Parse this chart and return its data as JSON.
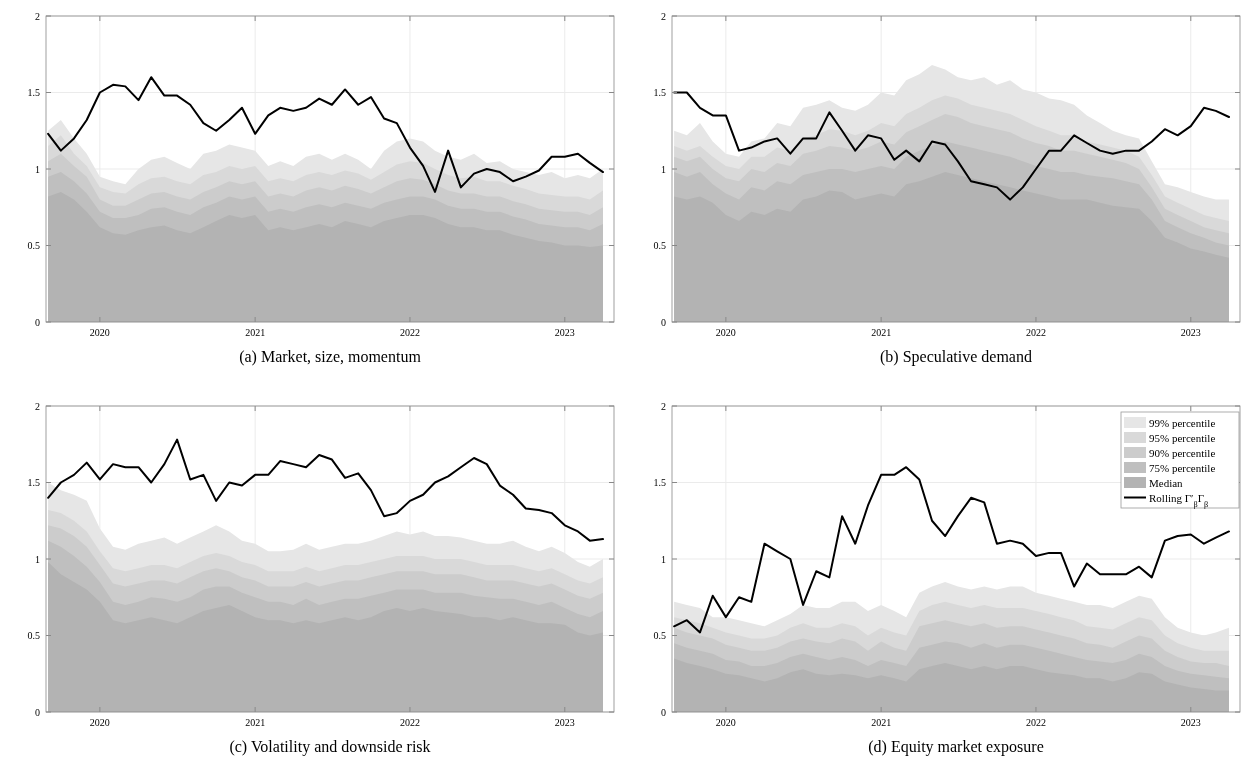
{
  "chart_data": [
    {
      "type": "area",
      "title": "(a) Market, size, momentum",
      "xlim": [
        "2019-08-27",
        "2023-04-27"
      ],
      "xticks": [
        {
          "value": "2020",
          "label": "2020"
        },
        {
          "value": "2021",
          "label": "2021"
        },
        {
          "value": "2022",
          "label": "2022"
        },
        {
          "value": "2023",
          "label": "2023"
        }
      ],
      "ylim": [
        0,
        2
      ],
      "yticks": [
        0,
        0.5,
        1,
        1.5,
        2
      ],
      "grid": true,
      "legend": false,
      "x": [
        "2019-09",
        "2019-10",
        "2019-11",
        "2019-12",
        "2020-01",
        "2020-02",
        "2020-03",
        "2020-04",
        "2020-05",
        "2020-06",
        "2020-07",
        "2020-08",
        "2020-09",
        "2020-10",
        "2020-11",
        "2020-12",
        "2021-01",
        "2021-02",
        "2021-03",
        "2021-04",
        "2021-05",
        "2021-06",
        "2021-07",
        "2021-08",
        "2021-09",
        "2021-10",
        "2021-11",
        "2021-12",
        "2022-01",
        "2022-02",
        "2022-03",
        "2022-04",
        "2022-05",
        "2022-06",
        "2022-07",
        "2022-08",
        "2022-09",
        "2022-10",
        "2022-11",
        "2022-12",
        "2023-01",
        "2023-02",
        "2023-03",
        "2023-04"
      ],
      "series": [
        {
          "color": "#e6e6e6",
          "values": [
            1.25,
            1.32,
            1.2,
            1.1,
            0.95,
            0.92,
            0.9,
            1.0,
            1.06,
            1.08,
            1.04,
            1.0,
            1.1,
            1.12,
            1.16,
            1.14,
            1.12,
            1.02,
            1.05,
            1.02,
            1.08,
            1.1,
            1.06,
            1.1,
            1.06,
            1.0,
            1.12,
            1.18,
            1.2,
            1.18,
            1.12,
            1.08,
            1.06,
            1.1,
            1.04,
            1.05,
            1.0,
            0.98,
            0.96,
            0.98,
            0.94,
            0.96,
            0.94,
            1.0
          ]
        },
        {
          "color": "#d9d9d9",
          "values": [
            1.15,
            1.22,
            1.1,
            1.02,
            0.88,
            0.85,
            0.84,
            0.9,
            0.94,
            0.95,
            0.92,
            0.9,
            0.96,
            0.98,
            1.02,
            1.0,
            1.02,
            0.92,
            0.94,
            0.92,
            0.96,
            0.98,
            0.96,
            0.99,
            0.97,
            0.93,
            0.98,
            1.03,
            1.05,
            1.04,
            1.0,
            0.96,
            0.94,
            0.95,
            0.92,
            0.92,
            0.89,
            0.87,
            0.84,
            0.83,
            0.82,
            0.82,
            0.8,
            0.86
          ]
        },
        {
          "color": "#cccccc",
          "values": [
            1.05,
            1.1,
            1.02,
            0.95,
            0.8,
            0.76,
            0.76,
            0.8,
            0.84,
            0.85,
            0.82,
            0.8,
            0.85,
            0.88,
            0.92,
            0.9,
            0.92,
            0.82,
            0.84,
            0.82,
            0.86,
            0.88,
            0.86,
            0.89,
            0.87,
            0.84,
            0.88,
            0.92,
            0.94,
            0.93,
            0.9,
            0.86,
            0.84,
            0.84,
            0.82,
            0.82,
            0.79,
            0.77,
            0.74,
            0.73,
            0.72,
            0.72,
            0.7,
            0.75
          ]
        },
        {
          "color": "#bfbfbf",
          "values": [
            0.95,
            0.98,
            0.92,
            0.84,
            0.72,
            0.68,
            0.68,
            0.7,
            0.74,
            0.75,
            0.72,
            0.7,
            0.75,
            0.78,
            0.82,
            0.8,
            0.82,
            0.72,
            0.74,
            0.72,
            0.75,
            0.77,
            0.75,
            0.78,
            0.76,
            0.74,
            0.78,
            0.8,
            0.82,
            0.82,
            0.8,
            0.76,
            0.74,
            0.74,
            0.72,
            0.72,
            0.69,
            0.67,
            0.64,
            0.63,
            0.62,
            0.62,
            0.6,
            0.64
          ]
        },
        {
          "color": "#b3b3b3",
          "values": [
            0.82,
            0.85,
            0.8,
            0.72,
            0.62,
            0.58,
            0.57,
            0.6,
            0.62,
            0.63,
            0.6,
            0.58,
            0.62,
            0.66,
            0.7,
            0.68,
            0.7,
            0.6,
            0.62,
            0.6,
            0.62,
            0.64,
            0.62,
            0.66,
            0.64,
            0.62,
            0.66,
            0.68,
            0.7,
            0.7,
            0.68,
            0.64,
            0.62,
            0.62,
            0.6,
            0.6,
            0.57,
            0.55,
            0.53,
            0.52,
            0.5,
            0.5,
            0.49,
            0.5
          ]
        },
        {
          "type": "line",
          "color": "#000000",
          "values": [
            1.23,
            1.12,
            1.2,
            1.32,
            1.5,
            1.55,
            1.54,
            1.45,
            1.6,
            1.48,
            1.48,
            1.42,
            1.3,
            1.25,
            1.32,
            1.4,
            1.23,
            1.35,
            1.4,
            1.38,
            1.4,
            1.46,
            1.42,
            1.52,
            1.42,
            1.47,
            1.33,
            1.3,
            1.14,
            1.02,
            0.85,
            1.12,
            0.88,
            0.97,
            1.0,
            0.98,
            0.92,
            0.95,
            0.99,
            1.08,
            1.08,
            1.1,
            1.04,
            0.98
          ]
        }
      ]
    },
    {
      "type": "area",
      "title": "(b) Speculative demand",
      "xlim": [
        "2019-08-27",
        "2023-04-27"
      ],
      "xticks": [
        {
          "value": "2020",
          "label": "2020"
        },
        {
          "value": "2021",
          "label": "2021"
        },
        {
          "value": "2022",
          "label": "2022"
        },
        {
          "value": "2023",
          "label": "2023"
        }
      ],
      "ylim": [
        0,
        2
      ],
      "yticks": [
        0,
        0.5,
        1,
        1.5,
        2
      ],
      "grid": true,
      "legend": false,
      "x": [
        "2019-09",
        "2019-10",
        "2019-11",
        "2019-12",
        "2020-01",
        "2020-02",
        "2020-03",
        "2020-04",
        "2020-05",
        "2020-06",
        "2020-07",
        "2020-08",
        "2020-09",
        "2020-10",
        "2020-11",
        "2020-12",
        "2021-01",
        "2021-02",
        "2021-03",
        "2021-04",
        "2021-05",
        "2021-06",
        "2021-07",
        "2021-08",
        "2021-09",
        "2021-10",
        "2021-11",
        "2021-12",
        "2022-01",
        "2022-02",
        "2022-03",
        "2022-04",
        "2022-05",
        "2022-06",
        "2022-07",
        "2022-08",
        "2022-09",
        "2022-10",
        "2022-11",
        "2022-12",
        "2023-01",
        "2023-02",
        "2023-03",
        "2023-04"
      ],
      "series": [
        {
          "color": "#e6e6e6",
          "values": [
            1.25,
            1.22,
            1.3,
            1.18,
            1.1,
            1.08,
            1.18,
            1.2,
            1.3,
            1.28,
            1.4,
            1.42,
            1.45,
            1.4,
            1.38,
            1.42,
            1.5,
            1.48,
            1.58,
            1.62,
            1.68,
            1.65,
            1.6,
            1.58,
            1.6,
            1.55,
            1.58,
            1.52,
            1.5,
            1.46,
            1.45,
            1.42,
            1.35,
            1.3,
            1.25,
            1.22,
            1.2,
            1.05,
            0.9,
            0.88,
            0.85,
            0.82,
            0.8,
            0.8
          ]
        },
        {
          "color": "#d9d9d9",
          "values": [
            1.15,
            1.12,
            1.15,
            1.08,
            1.02,
            1.0,
            1.08,
            1.08,
            1.14,
            1.12,
            1.2,
            1.22,
            1.26,
            1.25,
            1.22,
            1.25,
            1.3,
            1.28,
            1.36,
            1.4,
            1.45,
            1.48,
            1.46,
            1.42,
            1.4,
            1.38,
            1.36,
            1.32,
            1.28,
            1.25,
            1.22,
            1.22,
            1.18,
            1.16,
            1.14,
            1.12,
            1.08,
            0.96,
            0.82,
            0.78,
            0.74,
            0.7,
            0.68,
            0.66
          ]
        },
        {
          "color": "#cccccc",
          "values": [
            1.08,
            1.05,
            1.08,
            1.0,
            0.94,
            0.92,
            1.0,
            0.98,
            1.04,
            1.02,
            1.1,
            1.12,
            1.15,
            1.14,
            1.12,
            1.14,
            1.18,
            1.16,
            1.24,
            1.28,
            1.32,
            1.36,
            1.34,
            1.3,
            1.28,
            1.26,
            1.24,
            1.2,
            1.17,
            1.15,
            1.12,
            1.12,
            1.1,
            1.08,
            1.06,
            1.04,
            1.0,
            0.88,
            0.74,
            0.7,
            0.66,
            0.62,
            0.6,
            0.58
          ]
        },
        {
          "color": "#bfbfbf",
          "values": [
            0.98,
            0.95,
            0.98,
            0.9,
            0.84,
            0.8,
            0.88,
            0.86,
            0.92,
            0.9,
            0.96,
            0.98,
            1.0,
            1.0,
            0.98,
            1.0,
            1.02,
            1.0,
            1.08,
            1.12,
            1.15,
            1.18,
            1.16,
            1.14,
            1.12,
            1.1,
            1.08,
            1.05,
            1.02,
            1.0,
            0.98,
            0.98,
            0.96,
            0.95,
            0.94,
            0.92,
            0.9,
            0.8,
            0.66,
            0.62,
            0.58,
            0.55,
            0.52,
            0.5
          ]
        },
        {
          "color": "#b3b3b3",
          "values": [
            0.82,
            0.8,
            0.82,
            0.78,
            0.7,
            0.66,
            0.72,
            0.7,
            0.74,
            0.72,
            0.8,
            0.82,
            0.86,
            0.85,
            0.8,
            0.82,
            0.84,
            0.82,
            0.9,
            0.92,
            0.95,
            0.98,
            0.96,
            0.94,
            0.92,
            0.9,
            0.88,
            0.86,
            0.84,
            0.82,
            0.8,
            0.8,
            0.8,
            0.78,
            0.76,
            0.75,
            0.74,
            0.66,
            0.55,
            0.52,
            0.48,
            0.46,
            0.44,
            0.42
          ]
        },
        {
          "type": "line",
          "color": "#000000",
          "values": [
            1.5,
            1.5,
            1.4,
            1.35,
            1.35,
            1.12,
            1.14,
            1.18,
            1.2,
            1.1,
            1.2,
            1.2,
            1.37,
            1.25,
            1.12,
            1.22,
            1.2,
            1.06,
            1.12,
            1.05,
            1.18,
            1.16,
            1.05,
            0.92,
            0.9,
            0.88,
            0.8,
            0.88,
            1.0,
            1.12,
            1.12,
            1.22,
            1.17,
            1.12,
            1.1,
            1.12,
            1.12,
            1.18,
            1.26,
            1.22,
            1.28,
            1.4,
            1.38,
            1.34
          ]
        }
      ]
    },
    {
      "type": "area",
      "title": "(c) Volatility and downside risk",
      "xlim": [
        "2019-08-27",
        "2023-04-27"
      ],
      "xticks": [
        {
          "value": "2020",
          "label": "2020"
        },
        {
          "value": "2021",
          "label": "2021"
        },
        {
          "value": "2022",
          "label": "2022"
        },
        {
          "value": "2023",
          "label": "2023"
        }
      ],
      "ylim": [
        0,
        2
      ],
      "yticks": [
        0,
        0.5,
        1,
        1.5,
        2
      ],
      "grid": true,
      "legend": false,
      "x": [
        "2019-09",
        "2019-10",
        "2019-11",
        "2019-12",
        "2020-01",
        "2020-02",
        "2020-03",
        "2020-04",
        "2020-05",
        "2020-06",
        "2020-07",
        "2020-08",
        "2020-09",
        "2020-10",
        "2020-11",
        "2020-12",
        "2021-01",
        "2021-02",
        "2021-03",
        "2021-04",
        "2021-05",
        "2021-06",
        "2021-07",
        "2021-08",
        "2021-09",
        "2021-10",
        "2021-11",
        "2021-12",
        "2022-01",
        "2022-02",
        "2022-03",
        "2022-04",
        "2022-05",
        "2022-06",
        "2022-07",
        "2022-08",
        "2022-09",
        "2022-10",
        "2022-11",
        "2022-12",
        "2023-01",
        "2023-02",
        "2023-03",
        "2023-04"
      ],
      "series": [
        {
          "color": "#e6e6e6",
          "values": [
            1.5,
            1.45,
            1.42,
            1.38,
            1.2,
            1.08,
            1.06,
            1.1,
            1.12,
            1.14,
            1.1,
            1.14,
            1.18,
            1.22,
            1.18,
            1.12,
            1.1,
            1.05,
            1.05,
            1.06,
            1.1,
            1.06,
            1.08,
            1.1,
            1.1,
            1.12,
            1.15,
            1.18,
            1.16,
            1.18,
            1.15,
            1.15,
            1.14,
            1.12,
            1.1,
            1.1,
            1.12,
            1.08,
            1.05,
            1.08,
            1.04,
            0.98,
            0.95,
            1.0
          ]
        },
        {
          "color": "#d9d9d9",
          "values": [
            1.32,
            1.3,
            1.25,
            1.18,
            1.05,
            0.94,
            0.92,
            0.94,
            0.96,
            0.96,
            0.94,
            0.98,
            1.02,
            1.04,
            1.02,
            0.98,
            0.96,
            0.92,
            0.92,
            0.92,
            0.95,
            0.92,
            0.94,
            0.96,
            0.96,
            0.98,
            1.0,
            1.02,
            1.02,
            1.02,
            1.0,
            1.0,
            1.0,
            0.98,
            0.96,
            0.96,
            0.96,
            0.94,
            0.92,
            0.94,
            0.9,
            0.86,
            0.84,
            0.88
          ]
        },
        {
          "color": "#cccccc",
          "values": [
            1.22,
            1.2,
            1.15,
            1.08,
            0.96,
            0.84,
            0.82,
            0.84,
            0.86,
            0.86,
            0.84,
            0.88,
            0.92,
            0.94,
            0.92,
            0.88,
            0.86,
            0.82,
            0.82,
            0.82,
            0.85,
            0.82,
            0.84,
            0.86,
            0.86,
            0.88,
            0.9,
            0.92,
            0.92,
            0.92,
            0.9,
            0.9,
            0.9,
            0.88,
            0.86,
            0.86,
            0.86,
            0.84,
            0.82,
            0.84,
            0.8,
            0.76,
            0.74,
            0.78
          ]
        },
        {
          "color": "#bfbfbf",
          "values": [
            1.12,
            1.08,
            1.02,
            0.95,
            0.85,
            0.72,
            0.7,
            0.72,
            0.75,
            0.74,
            0.72,
            0.75,
            0.8,
            0.82,
            0.82,
            0.78,
            0.75,
            0.72,
            0.72,
            0.7,
            0.74,
            0.7,
            0.72,
            0.74,
            0.74,
            0.76,
            0.78,
            0.8,
            0.8,
            0.8,
            0.78,
            0.78,
            0.78,
            0.76,
            0.75,
            0.74,
            0.74,
            0.72,
            0.7,
            0.72,
            0.68,
            0.64,
            0.62,
            0.66
          ]
        },
        {
          "color": "#b3b3b3",
          "values": [
            0.98,
            0.9,
            0.85,
            0.8,
            0.72,
            0.6,
            0.58,
            0.6,
            0.62,
            0.6,
            0.58,
            0.62,
            0.66,
            0.68,
            0.7,
            0.66,
            0.62,
            0.6,
            0.6,
            0.58,
            0.6,
            0.58,
            0.6,
            0.62,
            0.6,
            0.62,
            0.66,
            0.68,
            0.66,
            0.68,
            0.66,
            0.65,
            0.64,
            0.62,
            0.62,
            0.6,
            0.62,
            0.6,
            0.58,
            0.58,
            0.57,
            0.52,
            0.5,
            0.52
          ]
        },
        {
          "type": "line",
          "color": "#000000",
          "values": [
            1.4,
            1.5,
            1.55,
            1.63,
            1.52,
            1.62,
            1.6,
            1.6,
            1.5,
            1.62,
            1.78,
            1.52,
            1.55,
            1.38,
            1.5,
            1.48,
            1.55,
            1.55,
            1.64,
            1.62,
            1.6,
            1.68,
            1.65,
            1.53,
            1.56,
            1.45,
            1.28,
            1.3,
            1.38,
            1.42,
            1.5,
            1.54,
            1.6,
            1.66,
            1.62,
            1.48,
            1.42,
            1.33,
            1.32,
            1.3,
            1.22,
            1.18,
            1.12,
            1.13
          ]
        }
      ]
    },
    {
      "type": "area",
      "title": "(d) Equity market exposure",
      "xlim": [
        "2019-08-27",
        "2023-04-27"
      ],
      "xticks": [
        {
          "value": "2020",
          "label": "2020"
        },
        {
          "value": "2021",
          "label": "2021"
        },
        {
          "value": "2022",
          "label": "2022"
        },
        {
          "value": "2023",
          "label": "2023"
        }
      ],
      "ylim": [
        0,
        2
      ],
      "yticks": [
        0,
        0.5,
        1,
        1.5,
        2
      ],
      "grid": true,
      "legend": "top right",
      "x": [
        "2019-09",
        "2019-10",
        "2019-11",
        "2019-12",
        "2020-01",
        "2020-02",
        "2020-03",
        "2020-04",
        "2020-05",
        "2020-06",
        "2020-07",
        "2020-08",
        "2020-09",
        "2020-10",
        "2020-11",
        "2020-12",
        "2021-01",
        "2021-02",
        "2021-03",
        "2021-04",
        "2021-05",
        "2021-06",
        "2021-07",
        "2021-08",
        "2021-09",
        "2021-10",
        "2021-11",
        "2021-12",
        "2022-01",
        "2022-02",
        "2022-03",
        "2022-04",
        "2022-05",
        "2022-06",
        "2022-07",
        "2022-08",
        "2022-09",
        "2022-10",
        "2022-11",
        "2022-12",
        "2023-01",
        "2023-02",
        "2023-03",
        "2023-04"
      ],
      "series": [
        {
          "name": "99% percentile",
          "color": "#e6e6e6",
          "values": [
            0.72,
            0.7,
            0.68,
            0.62,
            0.62,
            0.6,
            0.58,
            0.56,
            0.6,
            0.64,
            0.7,
            0.68,
            0.68,
            0.72,
            0.72,
            0.66,
            0.7,
            0.66,
            0.62,
            0.78,
            0.82,
            0.85,
            0.82,
            0.8,
            0.82,
            0.8,
            0.82,
            0.82,
            0.78,
            0.76,
            0.74,
            0.72,
            0.7,
            0.7,
            0.68,
            0.72,
            0.76,
            0.74,
            0.62,
            0.55,
            0.52,
            0.5,
            0.52,
            0.55
          ]
        },
        {
          "name": "95% percentile",
          "color": "#d9d9d9",
          "values": [
            0.62,
            0.6,
            0.58,
            0.55,
            0.52,
            0.5,
            0.48,
            0.48,
            0.5,
            0.55,
            0.58,
            0.55,
            0.55,
            0.58,
            0.56,
            0.5,
            0.55,
            0.52,
            0.5,
            0.66,
            0.7,
            0.72,
            0.7,
            0.68,
            0.7,
            0.68,
            0.68,
            0.68,
            0.66,
            0.64,
            0.62,
            0.6,
            0.56,
            0.55,
            0.54,
            0.58,
            0.62,
            0.6,
            0.5,
            0.45,
            0.42,
            0.4,
            0.4,
            0.4
          ]
        },
        {
          "name": "90% percentile",
          "color": "#cccccc",
          "values": [
            0.55,
            0.52,
            0.5,
            0.48,
            0.44,
            0.42,
            0.4,
            0.4,
            0.42,
            0.46,
            0.48,
            0.46,
            0.45,
            0.48,
            0.46,
            0.4,
            0.46,
            0.42,
            0.4,
            0.56,
            0.58,
            0.6,
            0.58,
            0.56,
            0.58,
            0.55,
            0.56,
            0.56,
            0.54,
            0.52,
            0.5,
            0.48,
            0.45,
            0.44,
            0.42,
            0.46,
            0.5,
            0.48,
            0.4,
            0.36,
            0.33,
            0.32,
            0.32,
            0.3
          ]
        },
        {
          "name": "75% percentile",
          "color": "#bfbfbf",
          "values": [
            0.45,
            0.42,
            0.4,
            0.38,
            0.34,
            0.33,
            0.3,
            0.3,
            0.32,
            0.36,
            0.38,
            0.36,
            0.34,
            0.36,
            0.34,
            0.3,
            0.34,
            0.32,
            0.3,
            0.42,
            0.44,
            0.46,
            0.45,
            0.42,
            0.45,
            0.42,
            0.44,
            0.44,
            0.42,
            0.4,
            0.38,
            0.36,
            0.34,
            0.33,
            0.32,
            0.34,
            0.38,
            0.36,
            0.3,
            0.27,
            0.25,
            0.24,
            0.23,
            0.22
          ]
        },
        {
          "name": "Median",
          "color": "#b3b3b3",
          "values": [
            0.35,
            0.32,
            0.3,
            0.28,
            0.25,
            0.24,
            0.22,
            0.2,
            0.22,
            0.26,
            0.28,
            0.25,
            0.24,
            0.25,
            0.24,
            0.22,
            0.24,
            0.22,
            0.2,
            0.28,
            0.3,
            0.32,
            0.3,
            0.28,
            0.3,
            0.28,
            0.3,
            0.3,
            0.28,
            0.26,
            0.25,
            0.24,
            0.22,
            0.22,
            0.2,
            0.22,
            0.26,
            0.25,
            0.2,
            0.18,
            0.16,
            0.15,
            0.14,
            0.14
          ]
        },
        {
          "name": "Rolling Γ′$_{β}$Γ$_{β}$",
          "type": "line",
          "color": "#000000",
          "values": [
            0.56,
            0.6,
            0.52,
            0.76,
            0.62,
            0.75,
            0.72,
            1.1,
            1.05,
            1.0,
            0.7,
            0.92,
            0.88,
            1.28,
            1.1,
            1.35,
            1.55,
            1.55,
            1.6,
            1.52,
            1.25,
            1.15,
            1.28,
            1.4,
            1.37,
            1.1,
            1.12,
            1.1,
            1.02,
            1.04,
            1.04,
            0.82,
            0.97,
            0.9,
            0.9,
            0.9,
            0.95,
            0.88,
            1.12,
            1.15,
            1.16,
            1.1,
            1.14,
            1.18
          ]
        }
      ]
    }
  ]
}
